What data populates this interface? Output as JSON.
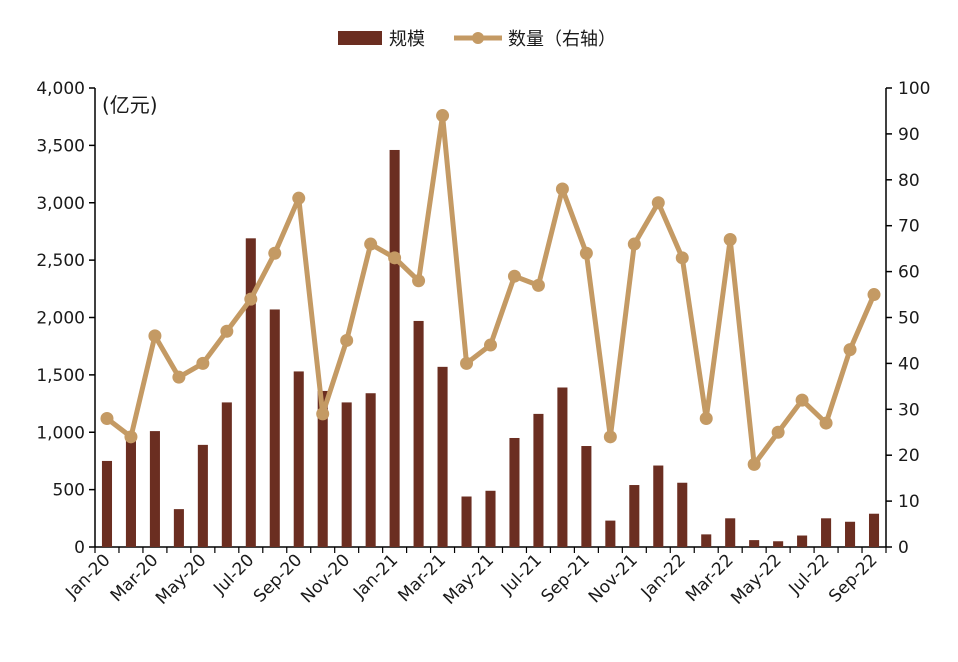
{
  "chart_data": {
    "type": "bar",
    "unit_label": "(亿元)",
    "categories": [
      "Jan-20",
      "Feb-20",
      "Mar-20",
      "Apr-20",
      "May-20",
      "Jun-20",
      "Jul-20",
      "Aug-20",
      "Sep-20",
      "Oct-20",
      "Nov-20",
      "Dec-20",
      "Jan-21",
      "Feb-21",
      "Mar-21",
      "Apr-21",
      "May-21",
      "Jun-21",
      "Jul-21",
      "Aug-21",
      "Sep-21",
      "Oct-21",
      "Nov-21",
      "Dec-21",
      "Jan-22",
      "Feb-22",
      "Mar-22",
      "Apr-22",
      "May-22",
      "Jun-22",
      "Jul-22",
      "Aug-22",
      "Sep-22"
    ],
    "x_tick_labels": [
      "Jan-20",
      "Mar-20",
      "May-20",
      "Jul-20",
      "Sep-20",
      "Nov-20",
      "Jan-21",
      "Mar-21",
      "May-21",
      "Jul-21",
      "Sep-21",
      "Nov-21",
      "Jan-22",
      "Mar-22",
      "May-22",
      "Jul-22",
      "Sep-22"
    ],
    "series": [
      {
        "name": "规模",
        "type": "bar",
        "axis": "left",
        "color": "#6b2e21",
        "values": [
          750,
          970,
          1010,
          330,
          890,
          1260,
          2690,
          2070,
          1530,
          1360,
          1260,
          1340,
          3460,
          1970,
          1570,
          440,
          490,
          950,
          1160,
          1390,
          880,
          230,
          540,
          710,
          560,
          110,
          250,
          60,
          50,
          100,
          250,
          220,
          290
        ]
      },
      {
        "name": "数量（右轴）",
        "type": "line",
        "axis": "right",
        "color": "#c49a64",
        "values": [
          28,
          24,
          46,
          37,
          40,
          47,
          54,
          64,
          76,
          29,
          45,
          66,
          63,
          58,
          94,
          40,
          44,
          59,
          57,
          78,
          64,
          24,
          66,
          75,
          63,
          28,
          67,
          18,
          25,
          32,
          27,
          43,
          55
        ]
      }
    ],
    "y_left": {
      "min": 0,
      "max": 4000,
      "ticks": [
        0,
        500,
        1000,
        1500,
        2000,
        2500,
        3000,
        3500,
        4000
      ],
      "tick_labels": [
        "0",
        "500",
        "1,000",
        "1,500",
        "2,000",
        "2,500",
        "3,000",
        "3,500",
        "4,000"
      ]
    },
    "y_right": {
      "min": 0,
      "max": 100,
      "ticks": [
        0,
        10,
        20,
        30,
        40,
        50,
        60,
        70,
        80,
        90,
        100
      ],
      "tick_labels": [
        "0",
        "10",
        "20",
        "30",
        "40",
        "50",
        "60",
        "70",
        "80",
        "90",
        "100"
      ]
    },
    "legend": {
      "position": "top-center"
    },
    "grid": false
  }
}
